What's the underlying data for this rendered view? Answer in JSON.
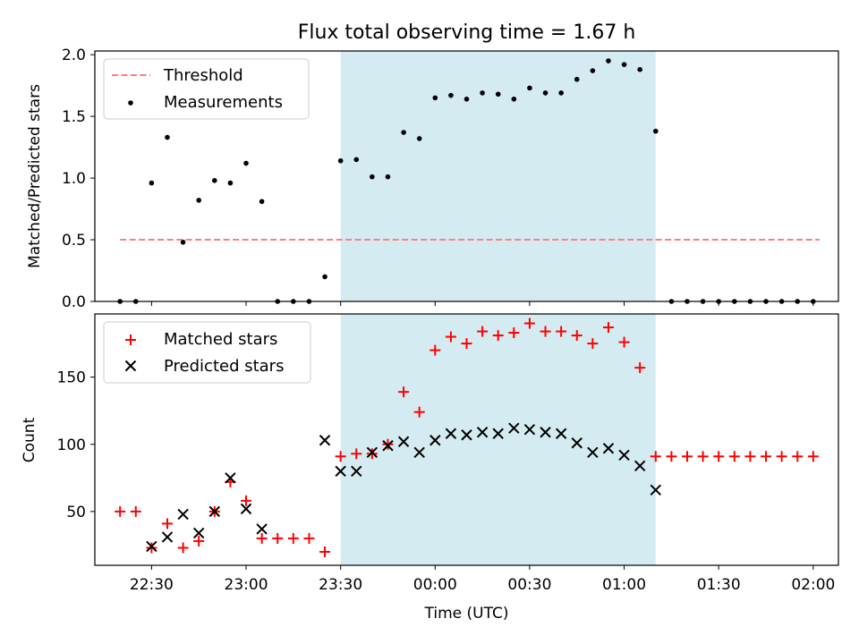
{
  "chart_data": [
    {
      "type": "scatter",
      "title": "Flux total observing time = 1.67 h",
      "xlabel": "",
      "ylabel": "Matched/Predicted stars",
      "xlim": [
        "22:12",
        "02:08"
      ],
      "ylim": [
        0,
        2.03
      ],
      "xticks": [
        "22:30",
        "23:00",
        "23:30",
        "00:00",
        "00:30",
        "01:00",
        "01:30",
        "02:00"
      ],
      "yticks": [
        "0.0",
        "0.5",
        "1.0",
        "1.5",
        "2.0"
      ],
      "shaded_span": [
        "23:30",
        "01:10"
      ],
      "shaded_color": "#d4ebf1",
      "legend_position": "upper left",
      "series": [
        {
          "name": "Threshold",
          "style": "dashed-line",
          "color": "#ff7f7f",
          "x": [
            "22:20",
            "02:02"
          ],
          "y": [
            0.5,
            0.5
          ]
        },
        {
          "name": "Measurements",
          "style": "dot",
          "color": "#000000",
          "x": [
            "22:20",
            "22:25",
            "22:30",
            "22:35",
            "22:40",
            "22:45",
            "22:50",
            "22:55",
            "23:00",
            "23:05",
            "23:10",
            "23:15",
            "23:20",
            "23:25",
            "23:30",
            "23:35",
            "23:40",
            "23:45",
            "23:50",
            "23:55",
            "00:00",
            "00:05",
            "00:10",
            "00:15",
            "00:20",
            "00:25",
            "00:30",
            "00:35",
            "00:40",
            "00:45",
            "00:50",
            "00:55",
            "01:00",
            "01:05",
            "01:10",
            "01:15",
            "01:20",
            "01:25",
            "01:30",
            "01:35",
            "01:40",
            "01:45",
            "01:50",
            "01:55",
            "02:00"
          ],
          "y": [
            0.0,
            0.0,
            0.96,
            1.33,
            0.48,
            0.82,
            0.98,
            0.96,
            1.12,
            0.81,
            0.0,
            0.0,
            0.0,
            0.2,
            1.14,
            1.15,
            1.01,
            1.01,
            1.37,
            1.32,
            1.65,
            1.67,
            1.64,
            1.69,
            1.68,
            1.64,
            1.73,
            1.69,
            1.69,
            1.8,
            1.87,
            1.95,
            1.92,
            1.88,
            1.38,
            0.0,
            0.0,
            0.0,
            0.0,
            0.0,
            0.0,
            0.0,
            0.0,
            0.0,
            0.0
          ]
        }
      ]
    },
    {
      "type": "scatter",
      "title": "",
      "xlabel": "Time (UTC)",
      "ylabel": "Count",
      "xlim": [
        "22:12",
        "02:08"
      ],
      "ylim": [
        10,
        197
      ],
      "xticks": [
        "22:30",
        "23:00",
        "23:30",
        "00:00",
        "00:30",
        "01:00",
        "01:30",
        "02:00"
      ],
      "yticks": [
        "50",
        "100",
        "150"
      ],
      "shaded_span": [
        "23:30",
        "01:10"
      ],
      "shaded_color": "#d4ebf1",
      "legend_position": "upper left",
      "series": [
        {
          "name": "Matched stars",
          "style": "plus",
          "color": "#ff0000",
          "x": [
            "22:20",
            "22:25",
            "22:30",
            "22:35",
            "22:40",
            "22:45",
            "22:50",
            "22:55",
            "23:00",
            "23:05",
            "23:10",
            "23:15",
            "23:20",
            "23:25",
            "23:30",
            "23:35",
            "23:40",
            "23:45",
            "23:50",
            "23:55",
            "00:00",
            "00:05",
            "00:10",
            "00:15",
            "00:20",
            "00:25",
            "00:30",
            "00:35",
            "00:40",
            "00:45",
            "00:50",
            "00:55",
            "01:00",
            "01:05",
            "01:10",
            "01:15",
            "01:20",
            "01:25",
            "01:30",
            "01:35",
            "01:40",
            "01:45",
            "01:50",
            "01:55",
            "02:00"
          ],
          "y": [
            50,
            50,
            23,
            41,
            23,
            28,
            50,
            72,
            58,
            30,
            30,
            30,
            30,
            20,
            91,
            93,
            93,
            100,
            139,
            124,
            170,
            180,
            175,
            184,
            181,
            183,
            190,
            184,
            184,
            181,
            175,
            187,
            176,
            157,
            91,
            91,
            91,
            91,
            91,
            91,
            91,
            91,
            91,
            91,
            91
          ]
        },
        {
          "name": "Predicted stars",
          "style": "cross",
          "color": "#000000",
          "x": [
            "22:30",
            "22:35",
            "22:40",
            "22:45",
            "22:50",
            "22:55",
            "23:00",
            "23:05",
            "23:25",
            "23:30",
            "23:35",
            "23:40",
            "23:45",
            "23:50",
            "23:55",
            "00:00",
            "00:05",
            "00:10",
            "00:15",
            "00:20",
            "00:25",
            "00:30",
            "00:35",
            "00:40",
            "00:45",
            "00:50",
            "00:55",
            "01:00",
            "01:05",
            "01:10"
          ],
          "y": [
            24,
            31,
            48,
            34,
            50,
            75,
            52,
            37,
            103,
            80,
            80,
            94,
            99,
            102,
            94,
            103,
            108,
            107,
            109,
            108,
            112,
            111,
            109,
            108,
            101,
            94,
            97,
            92,
            84,
            66
          ]
        }
      ]
    }
  ]
}
